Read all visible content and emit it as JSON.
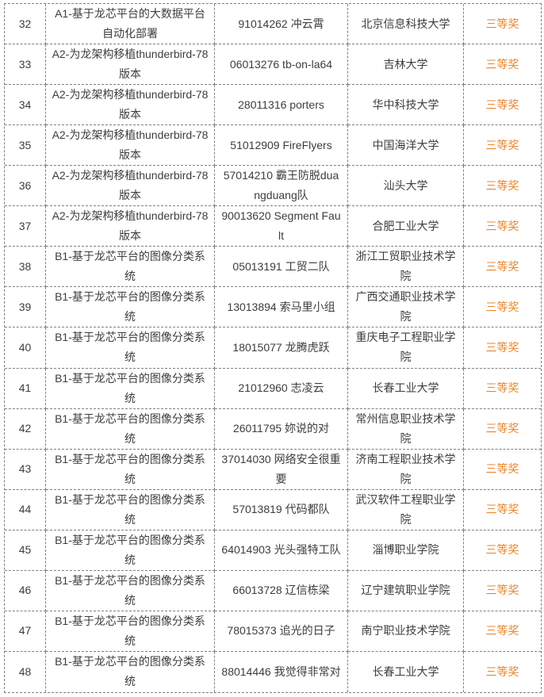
{
  "table": {
    "award_color": "#e8862d",
    "text_color": "#3d3d3d",
    "border_color": "#7f7f7f",
    "rows": [
      {
        "rank": "32",
        "project": "A1-基于龙芯平台的大数据平台自动化部署",
        "team": "91014262 冲云霄",
        "school": "北京信息科技大学",
        "award": "三等奖"
      },
      {
        "rank": "33",
        "project": "A2-为龙架构移植thunderbird-78版本",
        "team": "06013276 tb-on-la64",
        "school": "吉林大学",
        "award": "三等奖"
      },
      {
        "rank": "34",
        "project": "A2-为龙架构移植thunderbird-78版本",
        "team": "28011316 porters",
        "school": "华中科技大学",
        "award": "三等奖"
      },
      {
        "rank": "35",
        "project": "A2-为龙架构移植thunderbird-78版本",
        "team": "51012909 FireFlyers",
        "school": "中国海洋大学",
        "award": "三等奖"
      },
      {
        "rank": "36",
        "project": "A2-为龙架构移植thunderbird-78版本",
        "team": "57014210 霸王防脱duangduang队",
        "school": "汕头大学",
        "award": "三等奖"
      },
      {
        "rank": "37",
        "project": "A2-为龙架构移植thunderbird-78版本",
        "team": "90013620 Segment Fault",
        "school": "合肥工业大学",
        "award": "三等奖"
      },
      {
        "rank": "38",
        "project": "B1-基于龙芯平台的图像分类系统",
        "team": "05013191 工贸二队",
        "school": "浙江工贸职业技术学院",
        "award": "三等奖"
      },
      {
        "rank": "39",
        "project": "B1-基于龙芯平台的图像分类系统",
        "team": "13013894 索马里小组",
        "school": "广西交通职业技术学院",
        "award": "三等奖"
      },
      {
        "rank": "40",
        "project": "B1-基于龙芯平台的图像分类系统",
        "team": "18015077 龙腾虎跃",
        "school": "重庆电子工程职业学院",
        "award": "三等奖"
      },
      {
        "rank": "41",
        "project": "B1-基于龙芯平台的图像分类系统",
        "team": "21012960 志凌云",
        "school": "长春工业大学",
        "award": "三等奖"
      },
      {
        "rank": "42",
        "project": "B1-基于龙芯平台的图像分类系统",
        "team": "26011795 妳说的对",
        "school": "常州信息职业技术学院",
        "award": "三等奖"
      },
      {
        "rank": "43",
        "project": "B1-基于龙芯平台的图像分类系统",
        "team": "37014030 网络安全很重要",
        "school": "济南工程职业技术学院",
        "award": "三等奖"
      },
      {
        "rank": "44",
        "project": "B1-基于龙芯平台的图像分类系统",
        "team": "57013819 代码都队",
        "school": "武汉软件工程职业学院",
        "award": "三等奖"
      },
      {
        "rank": "45",
        "project": "B1-基于龙芯平台的图像分类系统",
        "team": "64014903 光头强特工队",
        "school": "淄博职业学院",
        "award": "三等奖"
      },
      {
        "rank": "46",
        "project": "B1-基于龙芯平台的图像分类系统",
        "team": "66013728 辽信栋梁",
        "school": "辽宁建筑职业学院",
        "award": "三等奖"
      },
      {
        "rank": "47",
        "project": "B1-基于龙芯平台的图像分类系统",
        "team": "78015373 追光的日子",
        "school": "南宁职业技术学院",
        "award": "三等奖"
      },
      {
        "rank": "48",
        "project": "B1-基于龙芯平台的图像分类系统",
        "team": "88014446 我觉得非常对",
        "school": "长春工业大学",
        "award": "三等奖"
      }
    ]
  }
}
